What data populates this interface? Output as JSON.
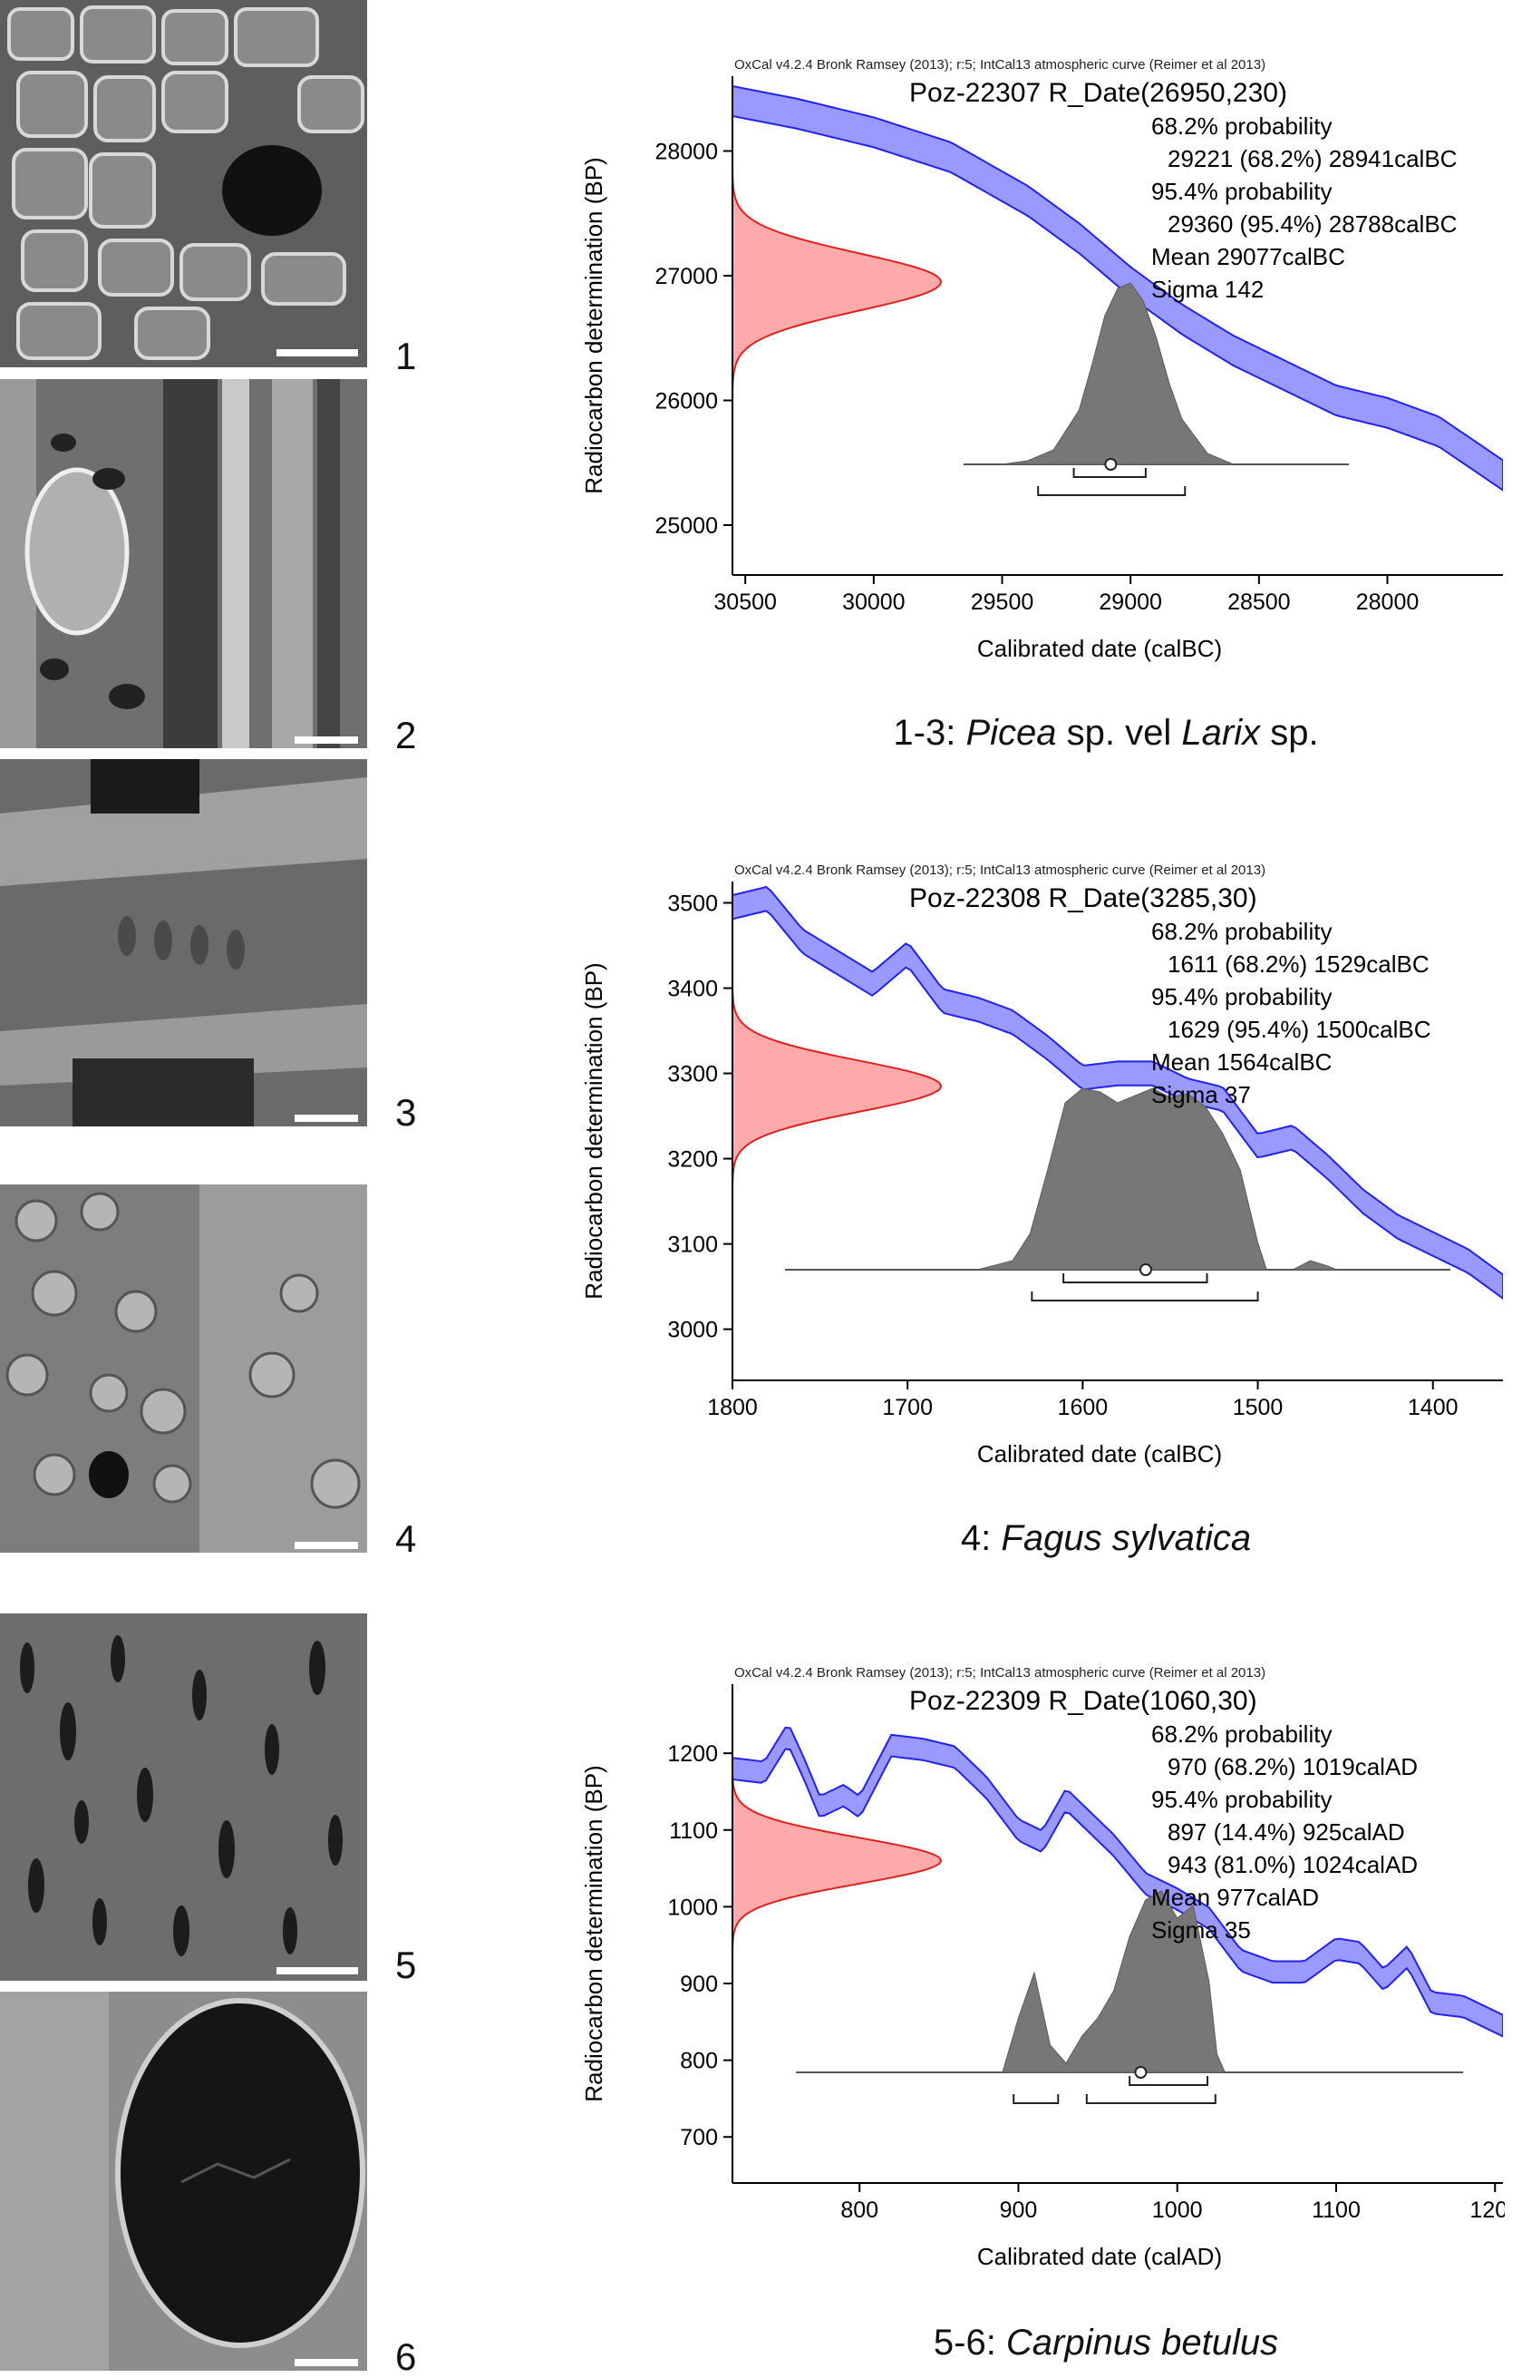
{
  "figure_labels": [
    "1",
    "2",
    "3",
    "4",
    "5",
    "6"
  ],
  "captions": [
    {
      "plain1": "1-3: ",
      "ital1": "Picea",
      "plain2": " sp. vel ",
      "ital2": "Larix",
      "plain3": " sp."
    },
    {
      "plain1": "4: ",
      "ital1": "Fagus sylvatica",
      "plain2": "",
      "ital2": "",
      "plain3": ""
    },
    {
      "plain1": "5-6: ",
      "ital1": "Carpinus betulus",
      "plain2": "",
      "ital2": "",
      "plain3": ""
    }
  ],
  "colors": {
    "curve_fill": "#9999ff",
    "curve_stroke": "#2222ee",
    "radiocarbon_fill": "#ffaaaa",
    "radiocarbon_stroke": "#dd2222",
    "posterior_fill": "#777777",
    "axis": "#000000"
  },
  "chart_data": [
    {
      "type": "area",
      "header": "OxCal v4.2.4 Bronk Ramsey (2013); r:5; IntCal13 atmospheric curve (Reimer et al 2013)",
      "title": "Poz-22307 R_Date(26950,230)",
      "stats": [
        "68.2% probability",
        "29221 (68.2%) 28941calBC",
        "95.4% probability",
        "29360 (95.4%) 28788calBC",
        "Mean 29077calBC",
        "Sigma 142"
      ],
      "xlabel": "Calibrated date (calBC)",
      "ylabel": "Radiocarbon determination (BP)",
      "x_reversed": true,
      "xlim": [
        30550,
        27550
      ],
      "ylim": [
        24600,
        28600
      ],
      "xticks": [
        30500,
        30000,
        29500,
        29000,
        28500,
        28000
      ],
      "yticks": [
        25000,
        26000,
        27000,
        28000
      ],
      "calibration_curve": {
        "x": [
          30550,
          30300,
          30000,
          29700,
          29400,
          29200,
          29000,
          28800,
          28600,
          28400,
          28200,
          28000,
          27800,
          27550
        ],
        "y": [
          28400,
          28300,
          28150,
          27950,
          27600,
          27300,
          26950,
          26650,
          26400,
          26200,
          26000,
          25900,
          25750,
          25400
        ],
        "sigma": 120
      },
      "radiocarbon": {
        "mean": 26950,
        "sigma": 230
      },
      "posterior": {
        "x": [
          29500,
          29400,
          29300,
          29200,
          29150,
          29100,
          29050,
          29000,
          28950,
          28900,
          28850,
          28800,
          28700,
          28600
        ],
        "p": [
          0,
          0.02,
          0.08,
          0.3,
          0.55,
          0.82,
          0.97,
          1.0,
          0.9,
          0.7,
          0.45,
          0.25,
          0.06,
          0
        ]
      },
      "posterior_range": [
        29650,
        28150
      ],
      "mean": 29077,
      "ranges_68": [
        [
          29221,
          28941
        ]
      ],
      "ranges_95": [
        [
          29360,
          28788
        ]
      ]
    },
    {
      "type": "area",
      "header": "OxCal v4.2.4 Bronk Ramsey (2013); r:5; IntCal13 atmospheric curve (Reimer et al 2013)",
      "title": "Poz-22308 R_Date(3285,30)",
      "stats": [
        "68.2% probability",
        "1611 (68.2%) 1529calBC",
        "95.4% probability",
        "1629 (95.4%) 1500calBC",
        "Mean 1564calBC",
        "Sigma 37"
      ],
      "xlabel": "Calibrated date (calBC)",
      "ylabel": "Radiocarbon determination (BP)",
      "x_reversed": true,
      "xlim": [
        1800,
        1360
      ],
      "ylim": [
        2940,
        3525
      ],
      "xticks": [
        1800,
        1700,
        1600,
        1500,
        1400
      ],
      "yticks": [
        3000,
        3100,
        3200,
        3300,
        3400,
        3500
      ],
      "calibration_curve": {
        "x": [
          1800,
          1780,
          1760,
          1740,
          1720,
          1700,
          1680,
          1660,
          1640,
          1620,
          1600,
          1580,
          1560,
          1540,
          1520,
          1500,
          1480,
          1460,
          1440,
          1420,
          1400,
          1380,
          1360
        ],
        "y": [
          3495,
          3505,
          3455,
          3430,
          3405,
          3440,
          3385,
          3375,
          3360,
          3330,
          3295,
          3300,
          3300,
          3280,
          3270,
          3215,
          3225,
          3190,
          3150,
          3120,
          3100,
          3080,
          3050
        ],
        "sigma": 14
      },
      "radiocarbon": {
        "mean": 3285,
        "sigma": 30
      },
      "posterior": {
        "x": [
          1660,
          1640,
          1630,
          1620,
          1610,
          1600,
          1590,
          1580,
          1570,
          1560,
          1550,
          1540,
          1530,
          1520,
          1510,
          1500,
          1495,
          1480,
          1470,
          1460,
          1455
        ],
        "p": [
          0,
          0.05,
          0.2,
          0.55,
          0.92,
          1.0,
          0.98,
          0.92,
          0.96,
          1.0,
          0.95,
          0.97,
          0.9,
          0.75,
          0.55,
          0.15,
          0,
          0,
          0.05,
          0.02,
          0
        ]
      },
      "posterior_range": [
        1770,
        1390
      ],
      "mean": 1564,
      "ranges_68": [
        [
          1611,
          1529
        ]
      ],
      "ranges_95": [
        [
          1629,
          1500
        ]
      ]
    },
    {
      "type": "area",
      "header": "OxCal v4.2.4 Bronk Ramsey (2013); r:5; IntCal13 atmospheric curve (Reimer et al 2013)",
      "title": "Poz-22309 R_Date(1060,30)",
      "stats": [
        "68.2% probability",
        "970 (68.2%) 1019calAD",
        "95.4% probability",
        "897 (14.4%) 925calAD",
        "943 (81.0%) 1024calAD",
        "Mean 977calAD",
        "Sigma 35"
      ],
      "xlabel": "Calibrated date (calAD)",
      "ylabel": "Radiocarbon determination (BP)",
      "x_reversed": false,
      "xlim": [
        720,
        1205
      ],
      "ylim": [
        640,
        1290
      ],
      "xticks": [
        800,
        900,
        1000,
        1100,
        1200
      ],
      "yticks": [
        700,
        800,
        900,
        1000,
        1100,
        1200
      ],
      "calibration_curve": {
        "x": [
          720,
          740,
          755,
          765,
          775,
          790,
          800,
          820,
          840,
          860,
          880,
          900,
          915,
          930,
          940,
          960,
          980,
          1000,
          1020,
          1040,
          1060,
          1080,
          1100,
          1115,
          1130,
          1145,
          1160,
          1180,
          1205
        ],
        "y": [
          1180,
          1175,
          1225,
          1180,
          1130,
          1145,
          1130,
          1210,
          1205,
          1195,
          1155,
          1100,
          1085,
          1140,
          1120,
          1080,
          1030,
          1010,
          985,
          930,
          915,
          915,
          945,
          940,
          905,
          935,
          875,
          870,
          845
        ],
        "sigma": 14
      },
      "radiocarbon": {
        "mean": 1060,
        "sigma": 30
      },
      "posterior": {
        "x": [
          890,
          900,
          910,
          920,
          930,
          940,
          950,
          960,
          970,
          980,
          990,
          1000,
          1010,
          1020,
          1025,
          1030
        ],
        "p": [
          0,
          0.3,
          0.55,
          0.15,
          0.05,
          0.2,
          0.3,
          0.45,
          0.75,
          0.95,
          1.0,
          0.85,
          0.92,
          0.5,
          0.1,
          0
        ]
      },
      "posterior_range": [
        760,
        1180
      ],
      "mean": 977,
      "ranges_68": [
        [
          970,
          1019
        ]
      ],
      "ranges_95": [
        [
          897,
          925
        ],
        [
          943,
          1024
        ]
      ]
    }
  ]
}
